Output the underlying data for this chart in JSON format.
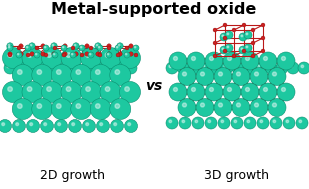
{
  "title": "Metal-supported oxide",
  "title_fontsize": 11.5,
  "label_2d": "2D growth",
  "label_3d": "3D growth",
  "vs_text": "vs",
  "vs_fontsize": 10,
  "label_fontsize": 9,
  "bg_color": "#ffffff",
  "teal_color": "#1DC8A0",
  "teal_edge": "#0A9070",
  "red_color": "#cc2020",
  "bond_color": "#bb1818",
  "green_bond": "#40aa60"
}
